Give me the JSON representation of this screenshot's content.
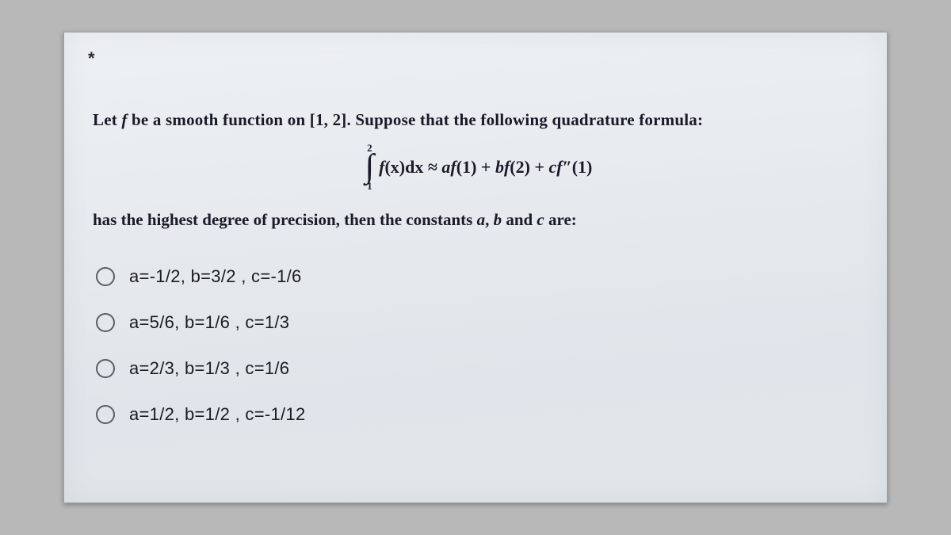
{
  "required_marker": "*",
  "question": {
    "line1_prefix": "Let ",
    "line1_f": "f",
    "line1_mid": " be a smooth function on ",
    "line1_interval": "[1, 2]",
    "line1_suffix": ". Suppose that the following quadrature formula:",
    "formula": {
      "upper": "2",
      "lower": "1",
      "integrand_f": "f",
      "integrand_x": "(x)dx",
      "approx": " ≈ ",
      "rhs_a": "a",
      "rhs_f1": "f",
      "rhs_p1": "(1) + ",
      "rhs_b": "b",
      "rhs_f2": "f",
      "rhs_p2": "(2) + ",
      "rhs_c": "c",
      "rhs_f3": "f″",
      "rhs_p3": "(1)"
    },
    "line2_prefix": "has the highest degree of precision, then the constants ",
    "line2_a": "a",
    "line2_sep1": ", ",
    "line2_b": "b",
    "line2_and": " and ",
    "line2_c": "c",
    "line2_suffix": " are:"
  },
  "options": [
    {
      "label": "a=-1/2, b=3/2 , c=-1/6"
    },
    {
      "label": "a=5/6, b=1/6 , c=1/3"
    },
    {
      "label": "a=2/3, b=1/3 , c=1/6"
    },
    {
      "label": "a=1/2, b=1/2 , c=-1/12"
    }
  ],
  "colors": {
    "page_bg": "#b8b8b8",
    "paper_bg_top": "#eef1f3",
    "paper_bg_bot": "#e1e6ea",
    "border": "#9aa0a6",
    "text": "#1a1a2a",
    "radio_border": "#5a5f66"
  }
}
